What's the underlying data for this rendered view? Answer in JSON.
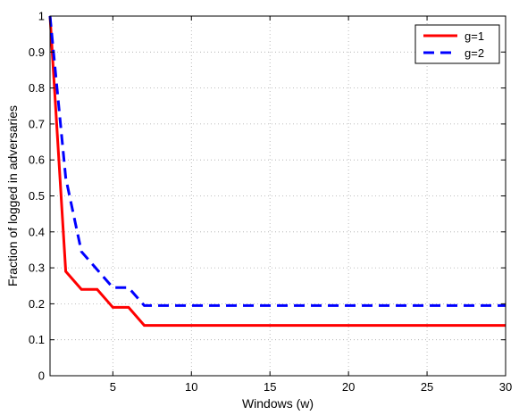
{
  "chart_data": {
    "type": "line",
    "title": "",
    "xlabel": "Windows (w)",
    "ylabel": "Fraction of logged in adversaries",
    "xlim": [
      1,
      30
    ],
    "ylim": [
      0,
      1
    ],
    "xticks": [
      5,
      10,
      15,
      20,
      25,
      30
    ],
    "yticks": [
      0,
      0.1,
      0.2,
      0.3,
      0.4,
      0.5,
      0.6,
      0.7,
      0.8,
      0.9,
      1
    ],
    "x_tick_labels": [
      "5",
      "10",
      "15",
      "20",
      "25",
      "30"
    ],
    "y_tick_labels": [
      "0",
      "0.1",
      "0.2",
      "0.3",
      "0.4",
      "0.5",
      "0.6",
      "0.7",
      "0.8",
      "0.9",
      "1"
    ],
    "grid": true,
    "legend": "top-right",
    "x": [
      1,
      2,
      3,
      4,
      5,
      6,
      7,
      8,
      9,
      10,
      11,
      12,
      13,
      14,
      15,
      16,
      17,
      18,
      19,
      20,
      21,
      22,
      23,
      24,
      25,
      26,
      27,
      28,
      29,
      30
    ],
    "series": [
      {
        "name": "g=1",
        "color": "#ff0000",
        "style": "solid",
        "values": [
          1,
          0.29,
          0.24,
          0.24,
          0.19,
          0.19,
          0.14,
          0.14,
          0.14,
          0.14,
          0.14,
          0.14,
          0.14,
          0.14,
          0.14,
          0.14,
          0.14,
          0.14,
          0.14,
          0.14,
          0.14,
          0.14,
          0.14,
          0.14,
          0.14,
          0.14,
          0.14,
          0.14,
          0.14,
          0.14
        ]
      },
      {
        "name": "g=2",
        "color": "#0000ff",
        "style": "dashed",
        "values": [
          1,
          0.55,
          0.345,
          0.295,
          0.245,
          0.245,
          0.195,
          0.195,
          0.195,
          0.195,
          0.195,
          0.195,
          0.195,
          0.195,
          0.195,
          0.195,
          0.195,
          0.195,
          0.195,
          0.195,
          0.195,
          0.195,
          0.195,
          0.195,
          0.195,
          0.195,
          0.195,
          0.195,
          0.195,
          0.195
        ]
      }
    ]
  }
}
